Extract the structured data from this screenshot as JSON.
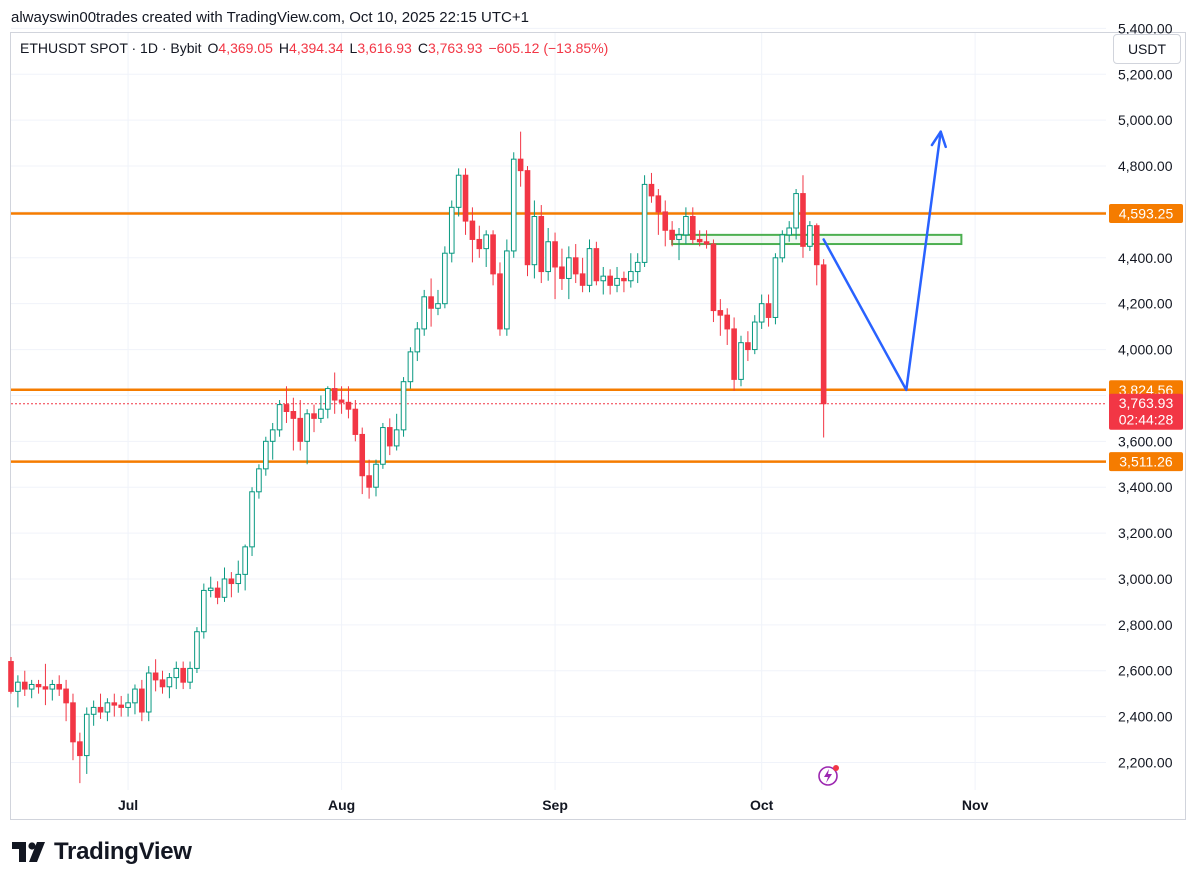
{
  "credit": "alwayswin00trades created with TradingView.com, Oct 10, 2025 22:15 UTC+1",
  "legend": {
    "symbol": "ETHUSDT SPOT · 1D · Bybit",
    "o_label": "O",
    "o": "4,369.05",
    "h_label": "H",
    "h": "4,394.34",
    "l_label": "L",
    "l": "3,616.93",
    "c_label": "C",
    "c": "3,763.93",
    "change": "−605.12 (−13.85%)"
  },
  "currency": "USDT",
  "brand": "TradingView",
  "colors": {
    "up": "#089981",
    "down": "#f23645",
    "level": "#f57c00",
    "zone": "#4caf50",
    "projection": "#2962ff",
    "grid": "#f0f3fa",
    "axis_text": "#131722"
  },
  "icons": {
    "logo": "tradingview-logo-icon",
    "alert": "lightning-alert-icon"
  },
  "chart_data": {
    "type": "candlestick",
    "y_range": [
      2080,
      5380
    ],
    "y_ticks": [
      {
        "value": 2200,
        "label": "2,200.00"
      },
      {
        "value": 2400,
        "label": "2,400.00"
      },
      {
        "value": 2600,
        "label": "2,600.00"
      },
      {
        "value": 2800,
        "label": "2,800.00"
      },
      {
        "value": 3000,
        "label": "3,000.00"
      },
      {
        "value": 3200,
        "label": "3,200.00"
      },
      {
        "value": 3400,
        "label": "3,400.00"
      },
      {
        "value": 3600,
        "label": "3,600.00"
      },
      {
        "value": 3800,
        "label": "3,800.00"
      },
      {
        "value": 4000,
        "label": "4,000.00"
      },
      {
        "value": 4200,
        "label": "4,200.00"
      },
      {
        "value": 4400,
        "label": "4,400.00"
      },
      {
        "value": 4600,
        "label": "4,600.00"
      },
      {
        "value": 4800,
        "label": "4,800.00"
      },
      {
        "value": 5000,
        "label": "5,000.00"
      },
      {
        "value": 5200,
        "label": "5,200.00"
      },
      {
        "value": 5400,
        "label": "5,400.00"
      }
    ],
    "x_range": [
      "2025-06-14",
      "2025-11-20"
    ],
    "x_ticks": [
      {
        "date": "2025-07-01",
        "label": "Jul"
      },
      {
        "date": "2025-08-01",
        "label": "Aug"
      },
      {
        "date": "2025-09-01",
        "label": "Sep"
      },
      {
        "date": "2025-10-01",
        "label": "Oct"
      },
      {
        "date": "2025-11-01",
        "label": "Nov"
      }
    ],
    "first_date": "2025-06-14",
    "candles": [
      [
        2640,
        2660,
        2500,
        2510
      ],
      [
        2510,
        2580,
        2440,
        2550
      ],
      [
        2550,
        2600,
        2490,
        2520
      ],
      [
        2520,
        2560,
        2480,
        2540
      ],
      [
        2540,
        2560,
        2500,
        2530
      ],
      [
        2530,
        2630,
        2450,
        2520
      ],
      [
        2520,
        2560,
        2470,
        2540
      ],
      [
        2540,
        2580,
        2490,
        2520
      ],
      [
        2520,
        2560,
        2380,
        2460
      ],
      [
        2460,
        2500,
        2210,
        2290
      ],
      [
        2290,
        2330,
        2110,
        2230
      ],
      [
        2230,
        2440,
        2150,
        2410
      ],
      [
        2410,
        2470,
        2360,
        2440
      ],
      [
        2440,
        2500,
        2390,
        2420
      ],
      [
        2420,
        2480,
        2380,
        2460
      ],
      [
        2460,
        2500,
        2400,
        2450
      ],
      [
        2450,
        2490,
        2400,
        2440
      ],
      [
        2440,
        2500,
        2400,
        2460
      ],
      [
        2460,
        2540,
        2410,
        2520
      ],
      [
        2520,
        2560,
        2380,
        2420
      ],
      [
        2420,
        2620,
        2380,
        2590
      ],
      [
        2590,
        2650,
        2510,
        2560
      ],
      [
        2560,
        2600,
        2500,
        2530
      ],
      [
        2530,
        2590,
        2480,
        2570
      ],
      [
        2570,
        2640,
        2520,
        2610
      ],
      [
        2610,
        2640,
        2520,
        2550
      ],
      [
        2550,
        2640,
        2520,
        2610
      ],
      [
        2610,
        2790,
        2590,
        2770
      ],
      [
        2770,
        2980,
        2740,
        2950
      ],
      [
        2950,
        3010,
        2920,
        2960
      ],
      [
        2960,
        2990,
        2890,
        2920
      ],
      [
        2920,
        3050,
        2900,
        3000
      ],
      [
        3000,
        3030,
        2920,
        2980
      ],
      [
        2980,
        3080,
        2940,
        3020
      ],
      [
        3020,
        3150,
        2950,
        3140
      ],
      [
        3140,
        3400,
        3100,
        3380
      ],
      [
        3380,
        3500,
        3350,
        3480
      ],
      [
        3480,
        3620,
        3450,
        3600
      ],
      [
        3600,
        3680,
        3520,
        3650
      ],
      [
        3650,
        3780,
        3620,
        3760
      ],
      [
        3760,
        3840,
        3680,
        3730
      ],
      [
        3730,
        3790,
        3560,
        3700
      ],
      [
        3700,
        3780,
        3560,
        3600
      ],
      [
        3600,
        3740,
        3500,
        3720
      ],
      [
        3720,
        3760,
        3640,
        3700
      ],
      [
        3700,
        3800,
        3680,
        3740
      ],
      [
        3740,
        3840,
        3700,
        3830
      ],
      [
        3830,
        3900,
        3720,
        3780
      ],
      [
        3780,
        3840,
        3720,
        3770
      ],
      [
        3770,
        3840,
        3700,
        3740
      ],
      [
        3740,
        3780,
        3600,
        3630
      ],
      [
        3630,
        3660,
        3370,
        3450
      ],
      [
        3450,
        3520,
        3350,
        3400
      ],
      [
        3400,
        3520,
        3360,
        3500
      ],
      [
        3500,
        3680,
        3480,
        3660
      ],
      [
        3660,
        3700,
        3540,
        3580
      ],
      [
        3580,
        3720,
        3560,
        3650
      ],
      [
        3650,
        3880,
        3620,
        3860
      ],
      [
        3860,
        4010,
        3830,
        3990
      ],
      [
        3990,
        4120,
        3950,
        4090
      ],
      [
        4090,
        4260,
        4060,
        4230
      ],
      [
        4230,
        4310,
        4100,
        4180
      ],
      [
        4180,
        4260,
        4150,
        4200
      ],
      [
        4200,
        4450,
        4180,
        4420
      ],
      [
        4420,
        4650,
        4380,
        4620
      ],
      [
        4620,
        4790,
        4580,
        4760
      ],
      [
        4760,
        4790,
        4500,
        4560
      ],
      [
        4560,
        4620,
        4380,
        4480
      ],
      [
        4480,
        4540,
        4400,
        4440
      ],
      [
        4440,
        4520,
        4360,
        4500
      ],
      [
        4500,
        4520,
        4280,
        4330
      ],
      [
        4330,
        4380,
        4060,
        4090
      ],
      [
        4090,
        4480,
        4060,
        4430
      ],
      [
        4430,
        4860,
        4400,
        4830
      ],
      [
        4830,
        4950,
        4710,
        4780
      ],
      [
        4780,
        4800,
        4320,
        4370
      ],
      [
        4370,
        4650,
        4310,
        4580
      ],
      [
        4580,
        4630,
        4290,
        4340
      ],
      [
        4340,
        4530,
        4300,
        4470
      ],
      [
        4470,
        4510,
        4220,
        4360
      ],
      [
        4360,
        4440,
        4260,
        4310
      ],
      [
        4310,
        4450,
        4220,
        4400
      ],
      [
        4400,
        4460,
        4290,
        4330
      ],
      [
        4330,
        4400,
        4250,
        4280
      ],
      [
        4280,
        4480,
        4250,
        4440
      ],
      [
        4440,
        4470,
        4280,
        4300
      ],
      [
        4300,
        4360,
        4240,
        4320
      ],
      [
        4320,
        4350,
        4240,
        4280
      ],
      [
        4280,
        4360,
        4250,
        4310
      ],
      [
        4310,
        4340,
        4250,
        4300
      ],
      [
        4300,
        4420,
        4270,
        4340
      ],
      [
        4340,
        4420,
        4290,
        4380
      ],
      [
        4380,
        4760,
        4360,
        4720
      ],
      [
        4720,
        4770,
        4640,
        4670
      ],
      [
        4670,
        4700,
        4500,
        4600
      ],
      [
        4600,
        4650,
        4450,
        4520
      ],
      [
        4520,
        4560,
        4450,
        4480
      ],
      [
        4480,
        4530,
        4390,
        4500
      ],
      [
        4500,
        4620,
        4460,
        4580
      ],
      [
        4580,
        4620,
        4460,
        4480
      ],
      [
        4480,
        4520,
        4450,
        4470
      ],
      [
        4470,
        4520,
        4440,
        4460
      ],
      [
        4460,
        4480,
        4120,
        4170
      ],
      [
        4170,
        4220,
        4060,
        4150
      ],
      [
        4150,
        4180,
        4020,
        4090
      ],
      [
        4090,
        4140,
        3820,
        3870
      ],
      [
        3870,
        4060,
        3840,
        4030
      ],
      [
        4030,
        4080,
        3950,
        4000
      ],
      [
        4000,
        4150,
        3980,
        4120
      ],
      [
        4120,
        4240,
        4090,
        4200
      ],
      [
        4200,
        4240,
        4100,
        4140
      ],
      [
        4140,
        4420,
        4110,
        4400
      ],
      [
        4400,
        4520,
        4380,
        4500
      ],
      [
        4500,
        4560,
        4470,
        4530
      ],
      [
        4530,
        4700,
        4480,
        4680
      ],
      [
        4680,
        4760,
        4400,
        4450
      ],
      [
        4450,
        4560,
        4430,
        4540
      ],
      [
        4540,
        4550,
        4280,
        4370
      ],
      [
        4369.05,
        4394.34,
        3616.93,
        3763.93
      ]
    ],
    "levels": [
      {
        "value": 4593.25,
        "label": "4,593.25"
      },
      {
        "value": 3824.56,
        "label": "3,824.56"
      },
      {
        "value": 3511.26,
        "label": "3,511.26"
      }
    ],
    "last_price": {
      "value": 3763.93,
      "label": "3,763.93",
      "countdown": "02:44:28"
    },
    "zone": {
      "x_start": "2025-09-18",
      "x_end": "2025-10-30",
      "y_low": 4460,
      "y_high": 4500
    },
    "projection": [
      {
        "date": "2025-10-10",
        "price": 4480
      },
      {
        "date": "2025-10-22",
        "price": 3824
      },
      {
        "date": "2025-10-27",
        "price": 4950
      }
    ]
  }
}
